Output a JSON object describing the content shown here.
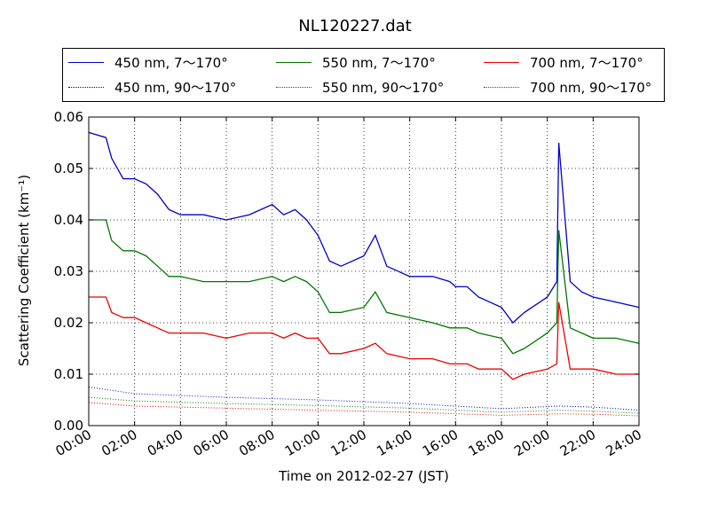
{
  "chart_data": {
    "type": "line",
    "title": "NL120227.dat",
    "xlabel": "Time on 2012-02-27 (JST)",
    "ylabel": "Scattering Coefficient (km⁻¹)",
    "xlim": [
      "00:00",
      "24:00"
    ],
    "ylim": [
      0,
      0.06
    ],
    "grid": true,
    "legend_position": "top",
    "x_ticks": [
      "00:00",
      "02:00",
      "04:00",
      "06:00",
      "08:00",
      "10:00",
      "12:00",
      "14:00",
      "16:00",
      "18:00",
      "20:00",
      "22:00",
      "24:00"
    ],
    "y_ticks": [
      "0.00",
      "0.01",
      "0.02",
      "0.03",
      "0.04",
      "0.05",
      "0.06"
    ],
    "series": [
      {
        "name": "450 nm, 7～170°",
        "color": "#0000cc",
        "style": "solid",
        "x": [
          "00:00",
          "00:45",
          "01:00",
          "01:30",
          "02:00",
          "02:30",
          "03:00",
          "03:30",
          "04:00",
          "05:00",
          "06:00",
          "07:00",
          "08:00",
          "08:30",
          "09:00",
          "09:30",
          "10:00",
          "10:30",
          "11:00",
          "12:00",
          "12:30",
          "13:00",
          "14:00",
          "15:00",
          "15:45",
          "16:00",
          "16:30",
          "17:00",
          "18:00",
          "18:30",
          "19:00",
          "20:00",
          "20:25",
          "20:30",
          "21:00",
          "21:30",
          "22:00",
          "23:00",
          "24:00"
        ],
        "y": [
          0.057,
          0.056,
          0.052,
          0.048,
          0.048,
          0.047,
          0.045,
          0.042,
          0.041,
          0.041,
          0.04,
          0.041,
          0.043,
          0.041,
          0.042,
          0.04,
          0.037,
          0.032,
          0.031,
          0.033,
          0.037,
          0.031,
          0.029,
          0.029,
          0.028,
          0.027,
          0.027,
          0.025,
          0.023,
          0.02,
          0.022,
          0.025,
          0.028,
          0.055,
          0.028,
          0.026,
          0.025,
          0.024,
          0.023
        ]
      },
      {
        "name": "550 nm, 7～170°",
        "color": "#007700",
        "style": "solid",
        "x": [
          "00:00",
          "00:45",
          "01:00",
          "01:30",
          "02:00",
          "02:30",
          "03:00",
          "03:30",
          "04:00",
          "05:00",
          "06:00",
          "07:00",
          "08:00",
          "08:30",
          "09:00",
          "09:30",
          "10:00",
          "10:30",
          "11:00",
          "12:00",
          "12:30",
          "13:00",
          "14:00",
          "15:00",
          "15:45",
          "16:00",
          "16:30",
          "17:00",
          "18:00",
          "18:30",
          "19:00",
          "20:00",
          "20:25",
          "20:30",
          "21:00",
          "21:30",
          "22:00",
          "23:00",
          "24:00"
        ],
        "y": [
          0.04,
          0.04,
          0.036,
          0.034,
          0.034,
          0.033,
          0.031,
          0.029,
          0.029,
          0.028,
          0.028,
          0.028,
          0.029,
          0.028,
          0.029,
          0.028,
          0.026,
          0.022,
          0.022,
          0.023,
          0.026,
          0.022,
          0.021,
          0.02,
          0.019,
          0.019,
          0.019,
          0.018,
          0.017,
          0.014,
          0.015,
          0.018,
          0.02,
          0.038,
          0.019,
          0.018,
          0.017,
          0.017,
          0.016
        ]
      },
      {
        "name": "700 nm, 7～170°",
        "color": "#ee0000",
        "style": "solid",
        "x": [
          "00:00",
          "00:45",
          "01:00",
          "01:30",
          "02:00",
          "02:30",
          "03:00",
          "03:30",
          "04:00",
          "05:00",
          "06:00",
          "07:00",
          "08:00",
          "08:30",
          "09:00",
          "09:30",
          "10:00",
          "10:30",
          "11:00",
          "12:00",
          "12:30",
          "13:00",
          "14:00",
          "15:00",
          "15:45",
          "16:00",
          "16:30",
          "17:00",
          "18:00",
          "18:30",
          "19:00",
          "20:00",
          "20:25",
          "20:30",
          "21:00",
          "21:30",
          "22:00",
          "23:00",
          "24:00"
        ],
        "y": [
          0.025,
          0.025,
          0.022,
          0.021,
          0.021,
          0.02,
          0.019,
          0.018,
          0.018,
          0.018,
          0.017,
          0.018,
          0.018,
          0.017,
          0.018,
          0.017,
          0.017,
          0.014,
          0.014,
          0.015,
          0.016,
          0.014,
          0.013,
          0.013,
          0.012,
          0.012,
          0.012,
          0.011,
          0.011,
          0.009,
          0.01,
          0.011,
          0.012,
          0.024,
          0.011,
          0.011,
          0.011,
          0.01,
          0.01
        ]
      },
      {
        "name": "450 nm, 90～170°",
        "color": "#0000cc",
        "style": "dotted",
        "x": [
          "00:00",
          "02:00",
          "06:00",
          "10:00",
          "14:00",
          "18:00",
          "20:30",
          "22:00",
          "24:00"
        ],
        "y": [
          0.0075,
          0.0062,
          0.0055,
          0.005,
          0.0043,
          0.0033,
          0.0038,
          0.0036,
          0.003
        ]
      },
      {
        "name": "550 nm, 90～170°",
        "color": "#007700",
        "style": "dotted",
        "x": [
          "00:00",
          "02:00",
          "06:00",
          "10:00",
          "14:00",
          "18:00",
          "20:30",
          "22:00",
          "24:00"
        ],
        "y": [
          0.0055,
          0.0048,
          0.0043,
          0.0039,
          0.0034,
          0.0026,
          0.003,
          0.0028,
          0.0024
        ]
      },
      {
        "name": "700 nm, 90～170°",
        "color": "#ee0000",
        "style": "dotted",
        "x": [
          "00:00",
          "02:00",
          "06:00",
          "10:00",
          "14:00",
          "18:00",
          "20:30",
          "22:00",
          "24:00"
        ],
        "y": [
          0.0045,
          0.0038,
          0.0034,
          0.003,
          0.0026,
          0.002,
          0.0023,
          0.0022,
          0.0019
        ]
      }
    ]
  }
}
